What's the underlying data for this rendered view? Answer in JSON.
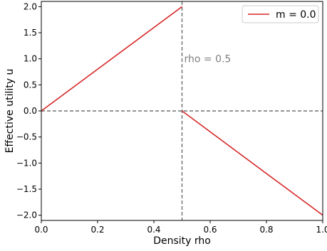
{
  "chart_data": {
    "type": "line",
    "title": "",
    "xlabel": "Density rho",
    "ylabel": "Effective utility u",
    "xlim": [
      0.0,
      1.0
    ],
    "ylim": [
      -2.1,
      2.1
    ],
    "xticks": [
      0.0,
      0.2,
      0.4,
      0.6,
      0.8,
      1.0
    ],
    "xtick_labels": [
      "0.0",
      "0.2",
      "0.4",
      "0.6",
      "0.8",
      "1.0"
    ],
    "yticks": [
      -2.0,
      -1.5,
      -1.0,
      -0.5,
      0.0,
      0.5,
      1.0,
      1.5,
      2.0
    ],
    "ytick_labels": [
      "−2.0",
      "−1.5",
      "−1.0",
      "−0.5",
      "0.0",
      "0.5",
      "1.0",
      "1.5",
      "2.0"
    ],
    "grid": false,
    "legend_position": "top-right",
    "series": [
      {
        "name": "m = 0.0",
        "color": "#d62728",
        "segments": [
          {
            "x": [
              0.0,
              0.5
            ],
            "y": [
              0.0,
              2.0
            ]
          },
          {
            "x": [
              0.5,
              1.0
            ],
            "y": [
              0.0,
              -2.0
            ]
          }
        ]
      }
    ],
    "reference_lines": [
      {
        "orientation": "vertical",
        "value": 0.5,
        "style": "dashed",
        "color": "#555555"
      },
      {
        "orientation": "horizontal",
        "value": 0.0,
        "style": "dashed",
        "color": "#555555"
      }
    ],
    "annotations": [
      {
        "text": "rho = 0.5",
        "x": 0.5,
        "y": 1.0,
        "color": "#808080"
      }
    ]
  }
}
